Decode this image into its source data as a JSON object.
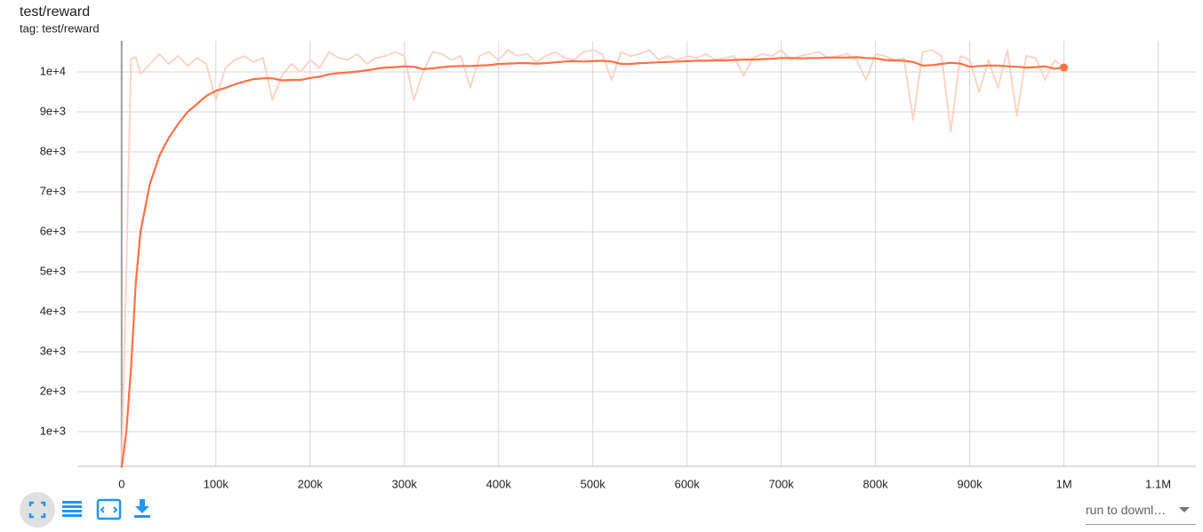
{
  "chart_data": {
    "type": "line",
    "title": "test/reward",
    "subtitle": "tag: test/reward",
    "x": [
      0,
      5000,
      10000,
      15000,
      20000,
      30000,
      40000,
      50000,
      60000,
      70000,
      80000,
      90000,
      100000,
      110000,
      120000,
      130000,
      140000,
      150000,
      160000,
      170000,
      180000,
      190000,
      200000,
      210000,
      220000,
      230000,
      240000,
      250000,
      260000,
      270000,
      280000,
      290000,
      300000,
      310000,
      320000,
      330000,
      340000,
      350000,
      360000,
      370000,
      380000,
      390000,
      400000,
      410000,
      420000,
      430000,
      440000,
      450000,
      460000,
      470000,
      480000,
      490000,
      500000,
      510000,
      520000,
      530000,
      540000,
      550000,
      560000,
      570000,
      580000,
      590000,
      600000,
      610000,
      620000,
      630000,
      640000,
      650000,
      660000,
      670000,
      680000,
      690000,
      700000,
      710000,
      720000,
      730000,
      740000,
      750000,
      760000,
      770000,
      780000,
      790000,
      800000,
      810000,
      820000,
      830000,
      840000,
      850000,
      860000,
      870000,
      880000,
      890000,
      900000,
      910000,
      920000,
      930000,
      940000,
      950000,
      960000,
      970000,
      980000,
      990000,
      1000000
    ],
    "series": [
      {
        "color": "#fdd3c4",
        "values": [
          100,
          5000,
          10330,
          10370,
          9950,
          10200,
          10450,
          10200,
          10400,
          10150,
          10350,
          10200,
          9300,
          10100,
          10300,
          10400,
          10250,
          10350,
          9300,
          9900,
          10200,
          10000,
          10300,
          10100,
          10500,
          10350,
          10300,
          10450,
          10200,
          10350,
          10400,
          10500,
          10400,
          9300,
          10000,
          10500,
          10450,
          10300,
          10400,
          9600,
          10400,
          10500,
          10300,
          10550,
          10400,
          10450,
          10250,
          10400,
          10500,
          10350,
          10300,
          10500,
          10550,
          10450,
          9800,
          10500,
          10400,
          10450,
          10550,
          10300,
          10400,
          10300,
          10400,
          10350,
          10450,
          10300,
          10350,
          10400,
          9900,
          10350,
          10450,
          10400,
          10550,
          10300,
          10400,
          10450,
          10500,
          10350,
          10400,
          10450,
          10300,
          9800,
          10450,
          10400,
          10300,
          10350,
          8800,
          10500,
          10550,
          10400,
          8500,
          10400,
          10300,
          9500,
          10300,
          9600,
          10550,
          8900,
          10400,
          10350,
          9800,
          10300,
          10100
        ]
      },
      {
        "color": "#ff7043",
        "values": [
          100,
          1000,
          2600,
          4700,
          6000,
          7200,
          7900,
          8350,
          8700,
          9000,
          9200,
          9400,
          9530,
          9600,
          9690,
          9760,
          9820,
          9840,
          9840,
          9790,
          9800,
          9800,
          9850,
          9880,
          9940,
          9970,
          9990,
          10010,
          10040,
          10080,
          10110,
          10120,
          10140,
          10130,
          10070,
          10090,
          10120,
          10140,
          10150,
          10150,
          10160,
          10170,
          10200,
          10210,
          10220,
          10220,
          10210,
          10220,
          10240,
          10260,
          10270,
          10260,
          10270,
          10280,
          10260,
          10200,
          10200,
          10220,
          10230,
          10240,
          10250,
          10260,
          10270,
          10280,
          10280,
          10290,
          10290,
          10300,
          10310,
          10310,
          10320,
          10330,
          10350,
          10350,
          10340,
          10350,
          10350,
          10360,
          10360,
          10360,
          10370,
          10350,
          10340,
          10300,
          10290,
          10280,
          10250,
          10160,
          10170,
          10200,
          10230,
          10210,
          10130,
          10150,
          10160,
          10160,
          10140,
          10130,
          10110,
          10120,
          10140,
          10080,
          10110
        ]
      }
    ],
    "xlim": [
      -47000,
      1140000
    ],
    "ylim": [
      133,
      10778
    ],
    "xticks": [
      0,
      {
        "value": 100000,
        "label": "100k"
      },
      {
        "value": 200000,
        "label": "200k"
      },
      {
        "value": 300000,
        "label": "300k"
      },
      {
        "value": 400000,
        "label": "400k"
      },
      {
        "value": 500000,
        "label": "500k"
      },
      {
        "value": 600000,
        "label": "600k"
      },
      {
        "value": 700000,
        "label": "700k"
      },
      {
        "value": 800000,
        "label": "800k"
      },
      {
        "value": 900000,
        "label": "900k"
      },
      {
        "value": 1000000,
        "label": "1M"
      },
      {
        "value": 1100000,
        "label": "1.1M"
      }
    ],
    "yticks": [
      {
        "value": 1000,
        "label": "1e+3"
      },
      {
        "value": 2000,
        "label": "2e+3"
      },
      {
        "value": 3000,
        "label": "3e+3"
      },
      {
        "value": 4000,
        "label": "4e+3"
      },
      {
        "value": 5000,
        "label": "5e+3"
      },
      {
        "value": 6000,
        "label": "6e+3"
      },
      {
        "value": 7000,
        "label": "7e+3"
      },
      {
        "value": 8000,
        "label": "8e+3"
      },
      {
        "value": 9000,
        "label": "9e+3"
      },
      {
        "value": 10000,
        "label": "1e+4"
      }
    ],
    "grid": true
  },
  "ui": {
    "download_select": "run to downl…"
  }
}
